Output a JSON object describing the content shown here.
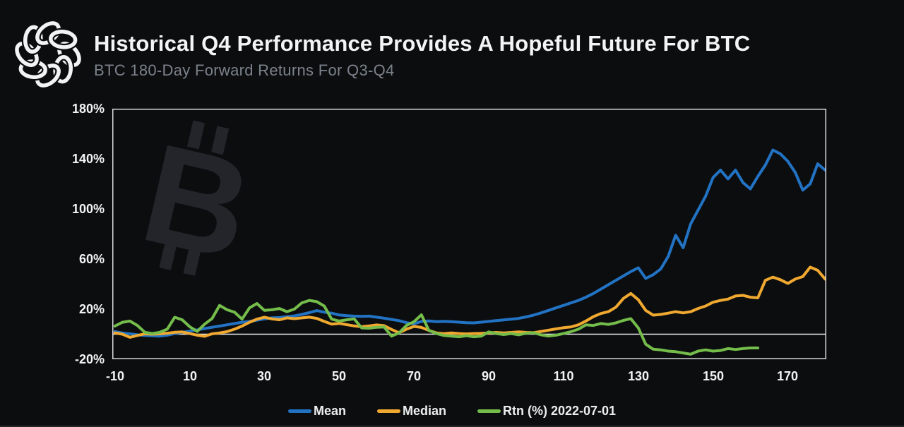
{
  "header": {
    "title": "Historical Q4 Performance Provides A Hopeful Future For BTC",
    "subtitle": "BTC 180-Day Forward Returns For Q3-Q4"
  },
  "colors": {
    "background": "#0c0d0f",
    "title_text": "#f3f4f6",
    "subtitle_text": "#7b828b",
    "axis_text": "#f2f3f4",
    "plot_border": "#d9dadb",
    "zero_line": "#eff0f1",
    "watermark": "#23252b",
    "logo": "#f2f3f4",
    "mean": "#2273c4",
    "median": "#f0a930",
    "rtn": "#74bd4b"
  },
  "watermark": {
    "letter": "B",
    "symbol_name": "bitcoin-sign"
  },
  "legend": {
    "items": [
      {
        "label": "Mean",
        "color": "#2273c4"
      },
      {
        "label": "Median",
        "color": "#f0a930"
      },
      {
        "label": "Rtn (%) 2022-07-01",
        "color": "#74bd4b"
      }
    ]
  },
  "chart_data": {
    "type": "line",
    "title": "Historical Q4 Performance Provides A Hopeful Future For BTC",
    "subtitle": "BTC 180-Day Forward Returns For Q3-Q4",
    "xlabel": "",
    "ylabel": "",
    "xlim": [
      -10.7,
      180.3
    ],
    "ylim": [
      -20,
      180
    ],
    "grid": "zero-line-only",
    "legend_position": "bottom",
    "x_ticks": [
      {
        "value": -10,
        "label": "-10"
      },
      {
        "value": 10,
        "label": "10"
      },
      {
        "value": 30,
        "label": "30"
      },
      {
        "value": 50,
        "label": "50"
      },
      {
        "value": 70,
        "label": "70"
      },
      {
        "value": 90,
        "label": "90"
      },
      {
        "value": 110,
        "label": "110"
      },
      {
        "value": 130,
        "label": "130"
      },
      {
        "value": 150,
        "label": "150"
      },
      {
        "value": 170,
        "label": "170"
      }
    ],
    "y_ticks": [
      {
        "value": 180,
        "label": "180%"
      },
      {
        "value": 140,
        "label": "140%"
      },
      {
        "value": 100,
        "label": "100%"
      },
      {
        "value": 60,
        "label": "60%"
      },
      {
        "value": 20,
        "label": "20%"
      },
      {
        "value": -20,
        "label": "-20%"
      }
    ],
    "x": [
      -10,
      -8,
      -6,
      -4,
      -2,
      0,
      2,
      4,
      6,
      8,
      10,
      12,
      14,
      16,
      18,
      20,
      22,
      24,
      26,
      28,
      30,
      32,
      34,
      36,
      38,
      40,
      42,
      44,
      46,
      48,
      50,
      52,
      54,
      56,
      58,
      60,
      62,
      64,
      66,
      68,
      70,
      72,
      74,
      76,
      78,
      80,
      82,
      84,
      86,
      88,
      90,
      92,
      94,
      96,
      98,
      100,
      102,
      104,
      106,
      108,
      110,
      112,
      114,
      116,
      118,
      120,
      122,
      124,
      126,
      128,
      130,
      132,
      134,
      136,
      138,
      140,
      142,
      144,
      146,
      148,
      150,
      152,
      154,
      156,
      158,
      160,
      162,
      164,
      166,
      168,
      170,
      172,
      174,
      176,
      178,
      180
    ],
    "series": [
      {
        "name": "Mean",
        "color": "#2273c4",
        "values": [
          2.0,
          1.0,
          0.3,
          -0.5,
          -1.0,
          -1.3,
          -1.5,
          -0.8,
          0.5,
          1.5,
          2.5,
          3.5,
          4.5,
          5.5,
          6.5,
          7.5,
          8.5,
          9.5,
          10.2,
          11.2,
          12.2,
          13.0,
          13.3,
          14.0,
          14.6,
          15.8,
          17.2,
          18.8,
          17.6,
          16.8,
          15.3,
          14.8,
          14.4,
          14.2,
          14.4,
          13.6,
          12.8,
          11.8,
          10.8,
          9.2,
          8.2,
          10.2,
          10.6,
          10.0,
          10.2,
          10.0,
          9.6,
          9.2,
          9.0,
          9.6,
          10.2,
          10.8,
          11.4,
          12.0,
          12.6,
          13.8,
          15.2,
          17.0,
          19.0,
          21.0,
          23.0,
          25.0,
          27.0,
          29.5,
          32.5,
          36.0,
          39.5,
          43.0,
          46.5,
          50.0,
          53.0,
          44.5,
          47.5,
          52.0,
          62.0,
          79.0,
          69.0,
          88.0,
          99.0,
          110.0,
          125.0,
          131.0,
          124.0,
          131.0,
          121.0,
          116.0,
          126.0,
          135.0,
          147.0,
          144.0,
          138.0,
          129.0,
          115.0,
          120.0,
          136.0,
          131.0
        ]
      },
      {
        "name": "Median",
        "color": "#f0a930",
        "values": [
          1.0,
          0.0,
          -2.5,
          -1.0,
          0.3,
          0.0,
          0.3,
          0.8,
          1.5,
          1.8,
          0.5,
          -0.8,
          -1.7,
          0.3,
          1.0,
          2.0,
          4.0,
          6.5,
          9.5,
          12.0,
          13.5,
          12.2,
          11.5,
          13.0,
          12.4,
          13.0,
          13.6,
          12.6,
          10.2,
          8.0,
          8.6,
          7.6,
          6.6,
          6.0,
          6.6,
          7.4,
          6.8,
          3.8,
          1.2,
          4.0,
          6.2,
          5.4,
          3.0,
          1.0,
          0.4,
          1.0,
          0.5,
          0.2,
          0.5,
          0.6,
          1.0,
          1.4,
          1.0,
          1.4,
          1.8,
          1.4,
          1.2,
          2.2,
          3.2,
          4.2,
          5.2,
          5.8,
          7.5,
          10.5,
          14.0,
          16.5,
          18.0,
          21.5,
          28.5,
          32.5,
          27.5,
          19.0,
          15.2,
          15.8,
          16.8,
          18.0,
          17.0,
          18.0,
          20.5,
          22.5,
          25.5,
          27.0,
          28.0,
          30.5,
          31.0,
          29.5,
          29.0,
          43.0,
          45.5,
          43.5,
          40.5,
          44.0,
          46.0,
          53.5,
          51.0,
          44.0
        ]
      },
      {
        "name": "Rtn (%) 2022-07-01",
        "color": "#74bd4b",
        "values": [
          6.5,
          9.5,
          10.5,
          7.0,
          1.5,
          0.5,
          1.5,
          4.0,
          13.5,
          11.5,
          6.0,
          2.2,
          8.0,
          12.5,
          23.0,
          19.5,
          17.5,
          12.0,
          21.0,
          24.5,
          19.0,
          19.5,
          20.5,
          18.0,
          20.0,
          25.0,
          27.0,
          26.0,
          22.5,
          12.0,
          10.5,
          11.5,
          12.2,
          5.0,
          4.8,
          5.5,
          5.8,
          -1.5,
          1.0,
          7.0,
          10.0,
          15.5,
          3.0,
          0.5,
          -1.0,
          -1.5,
          -2.0,
          -1.2,
          -2.0,
          -1.5,
          1.8,
          0.5,
          -0.3,
          0.5,
          -0.5,
          0.8,
          1.2,
          -0.5,
          -1.5,
          -0.8,
          0.5,
          2.0,
          4.0,
          7.5,
          7.0,
          8.5,
          7.8,
          9.0,
          11.0,
          12.4,
          5.0,
          -8.0,
          -12.0,
          -12.5,
          -13.5,
          -14.0,
          -15.0,
          -16.0,
          -13.5,
          -12.5,
          -13.5,
          -13.0,
          -11.5,
          -12.2,
          -11.5,
          -11.0,
          -11.0,
          null,
          null,
          null,
          null,
          null,
          null,
          null,
          null,
          null
        ]
      }
    ]
  }
}
